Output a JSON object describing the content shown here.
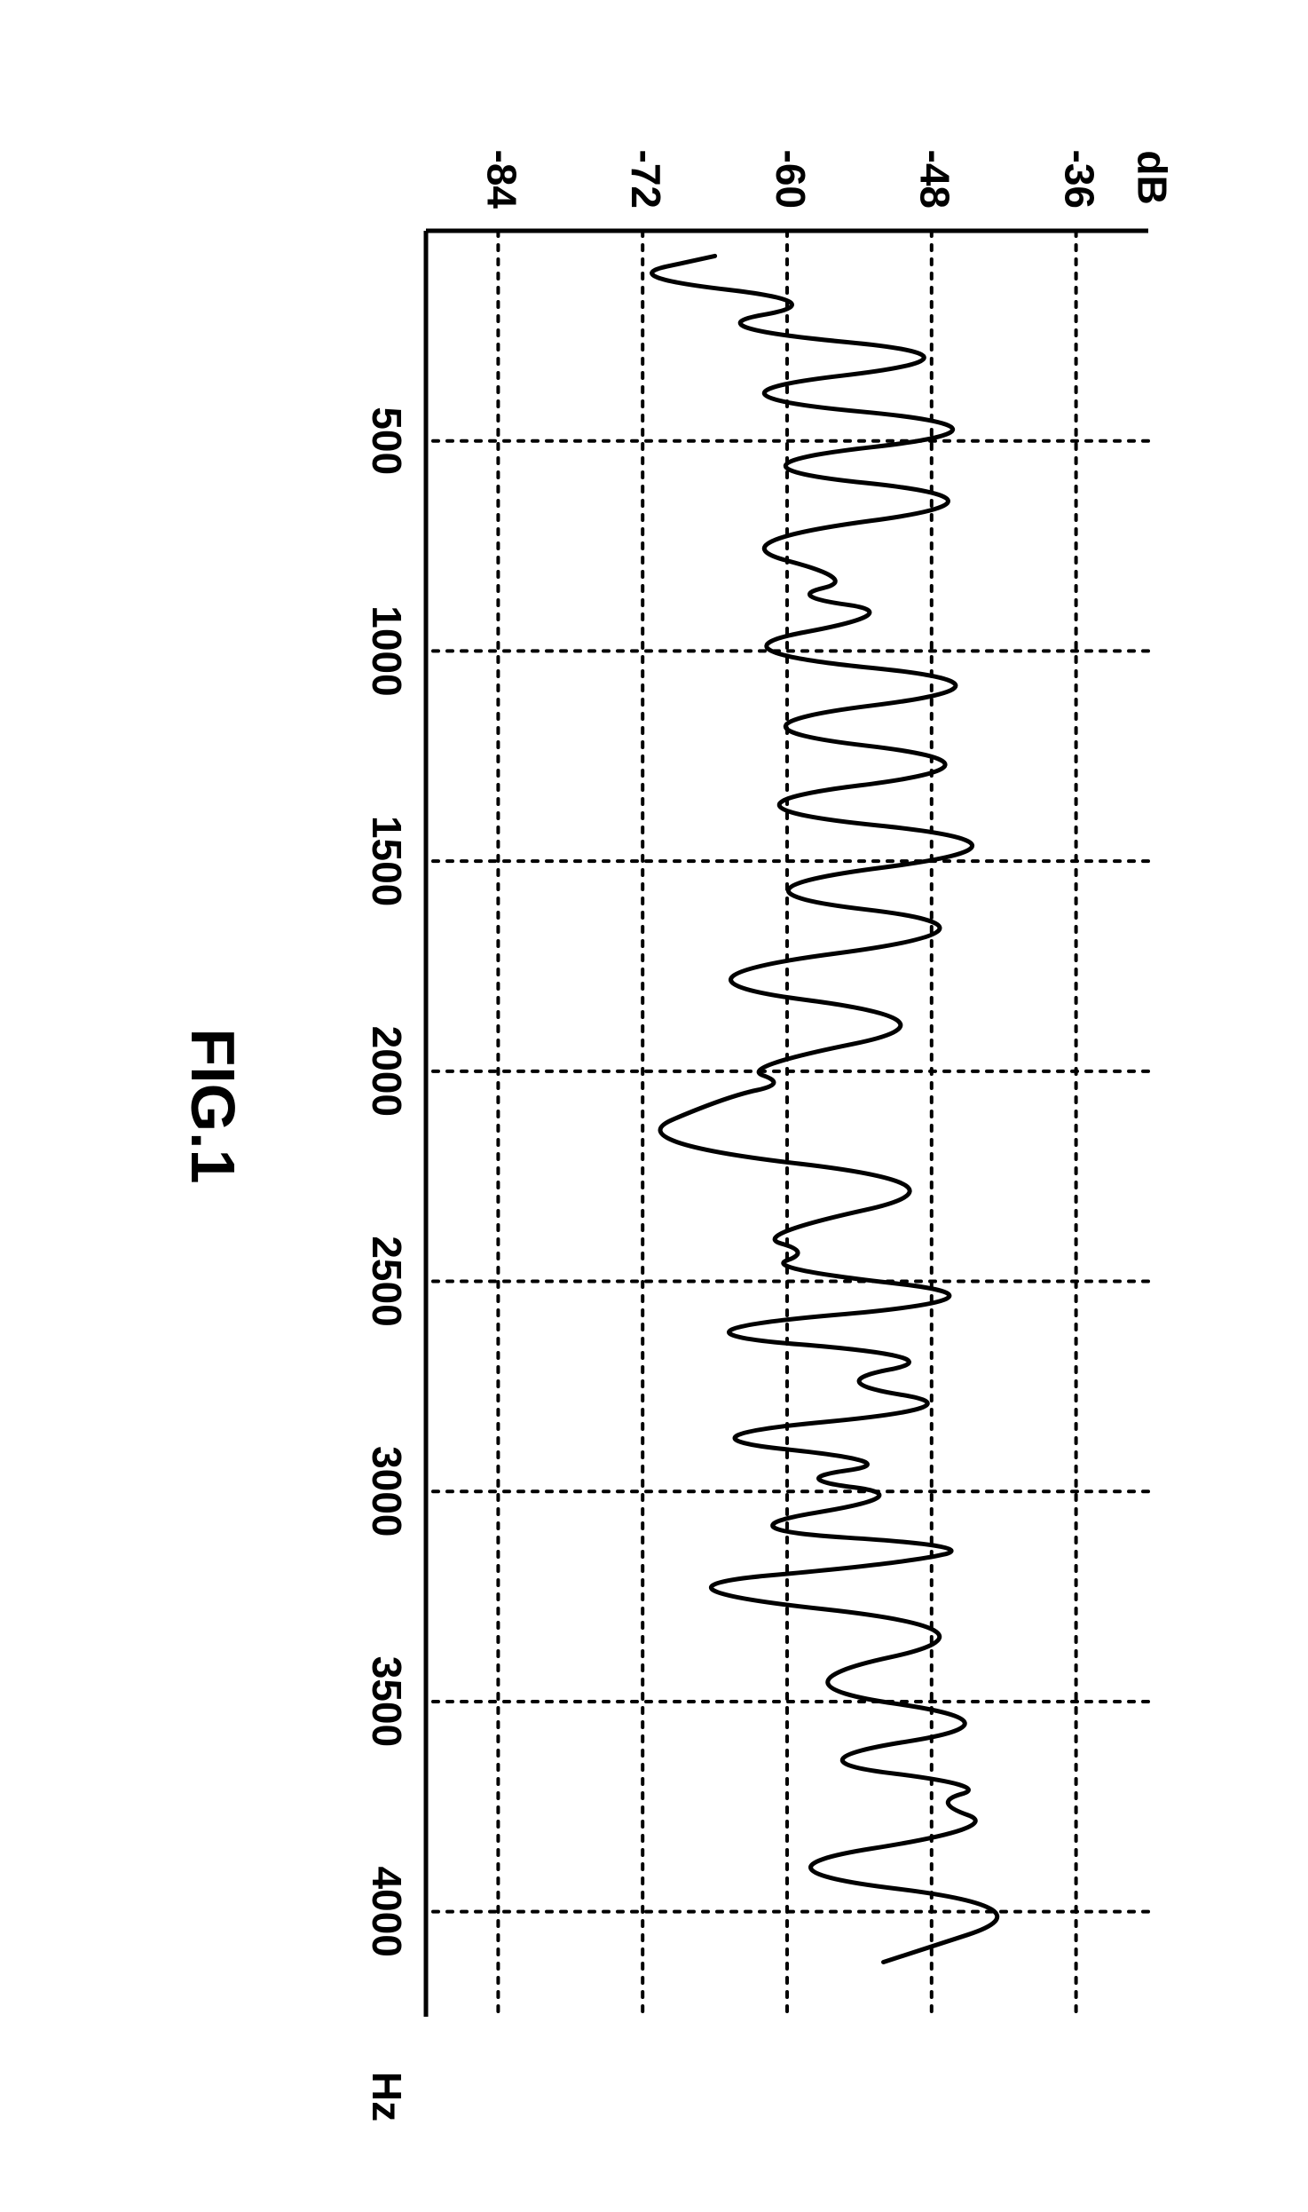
{
  "figure": {
    "caption": "FIG.1",
    "background_color": "#ffffff",
    "axis_color": "#000000",
    "grid_color": "#000000",
    "series_color": "#000000",
    "line_width": 5,
    "axis_line_width": 5,
    "grid_dash": "6,10",
    "x": {
      "label": "Hz",
      "min": 0,
      "max": 4250,
      "ticks": [
        500,
        1000,
        1500,
        2000,
        2500,
        3000,
        3500,
        4000
      ],
      "tick_fontsize": 46
    },
    "y": {
      "label": "dB",
      "min": -90,
      "max": -30,
      "ticks": [
        -36,
        -48,
        -60,
        -72,
        -84
      ],
      "tick_fontsize": 46
    },
    "series": [
      {
        "x": 60,
        "y": -66
      },
      {
        "x": 110,
        "y": -74
      },
      {
        "x": 170,
        "y": -56
      },
      {
        "x": 230,
        "y": -68
      },
      {
        "x": 300,
        "y": -42
      },
      {
        "x": 390,
        "y": -69
      },
      {
        "x": 470,
        "y": -39
      },
      {
        "x": 560,
        "y": -67
      },
      {
        "x": 640,
        "y": -40
      },
      {
        "x": 740,
        "y": -66
      },
      {
        "x": 830,
        "y": -54
      },
      {
        "x": 870,
        "y": -60
      },
      {
        "x": 910,
        "y": -50
      },
      {
        "x": 1000,
        "y": -67
      },
      {
        "x": 1080,
        "y": -39
      },
      {
        "x": 1180,
        "y": -67
      },
      {
        "x": 1270,
        "y": -40
      },
      {
        "x": 1370,
        "y": -68
      },
      {
        "x": 1460,
        "y": -37
      },
      {
        "x": 1570,
        "y": -67
      },
      {
        "x": 1660,
        "y": -40
      },
      {
        "x": 1780,
        "y": -72
      },
      {
        "x": 1880,
        "y": -45
      },
      {
        "x": 1990,
        "y": -64
      },
      {
        "x": 2030,
        "y": -60
      },
      {
        "x": 2060,
        "y": -65
      },
      {
        "x": 2170,
        "y": -74
      },
      {
        "x": 2270,
        "y": -44
      },
      {
        "x": 2390,
        "y": -63
      },
      {
        "x": 2430,
        "y": -58
      },
      {
        "x": 2470,
        "y": -62
      },
      {
        "x": 2540,
        "y": -40
      },
      {
        "x": 2620,
        "y": -72
      },
      {
        "x": 2680,
        "y": -46
      },
      {
        "x": 2740,
        "y": -57
      },
      {
        "x": 2800,
        "y": -44
      },
      {
        "x": 2870,
        "y": -70
      },
      {
        "x": 2930,
        "y": -50
      },
      {
        "x": 2970,
        "y": -60
      },
      {
        "x": 3010,
        "y": -49
      },
      {
        "x": 3090,
        "y": -66
      },
      {
        "x": 3130,
        "y": -44
      },
      {
        "x": 3170,
        "y": -50
      },
      {
        "x": 3230,
        "y": -73
      },
      {
        "x": 3330,
        "y": -41
      },
      {
        "x": 3460,
        "y": -62
      },
      {
        "x": 3550,
        "y": -40
      },
      {
        "x": 3640,
        "y": -60
      },
      {
        "x": 3700,
        "y": -43
      },
      {
        "x": 3740,
        "y": -48
      },
      {
        "x": 3800,
        "y": -42
      },
      {
        "x": 3900,
        "y": -64
      },
      {
        "x": 3990,
        "y": -38
      },
      {
        "x": 4120,
        "y": -52
      }
    ]
  }
}
